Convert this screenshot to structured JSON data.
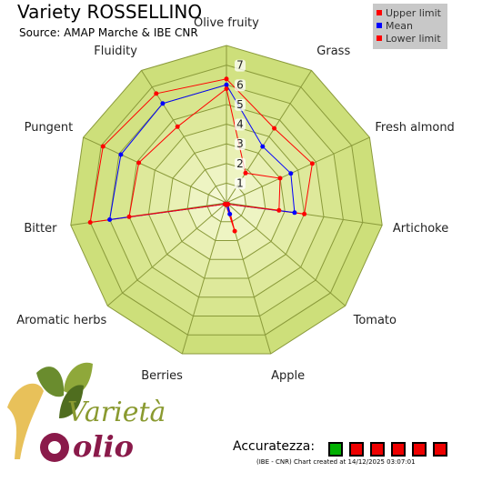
{
  "header": {
    "title": "Variety ROSSELLINO",
    "subtitle": "Source: AMAP Marche & IBE CNR"
  },
  "legend": {
    "items": [
      {
        "label": "Upper limit",
        "color": "#ff0000"
      },
      {
        "label": "Mean",
        "color": "#0000ff"
      },
      {
        "label": "Lower limit",
        "color": "#ff0000"
      }
    ]
  },
  "chart_data": {
    "type": "radar",
    "axes": [
      "Olive fruity",
      "Grass",
      "Fresh almond",
      "Artichoke",
      "Tomato",
      "Apple",
      "Berries",
      "Aromatic herbs",
      "Bitter",
      "Pungent",
      "Fluidity"
    ],
    "rlim": [
      0,
      8
    ],
    "ticks": [
      1,
      2,
      3,
      4,
      5,
      6,
      7
    ],
    "series": [
      {
        "name": "Upper limit",
        "color": "#ff0000",
        "values": [
          6.3,
          4.5,
          4.8,
          4.0,
          0.1,
          1.5,
          0.1,
          0.1,
          7.0,
          6.9,
          6.6
        ]
      },
      {
        "name": "Mean",
        "color": "#0000ff",
        "values": [
          6.0,
          3.4,
          3.6,
          3.5,
          0.1,
          0.6,
          0.1,
          0.1,
          6.0,
          5.9,
          6.0
        ]
      },
      {
        "name": "Lower limit",
        "color": "#ff0000",
        "values": [
          5.8,
          1.8,
          3.0,
          2.7,
          0.1,
          0.1,
          0.1,
          0.1,
          5.0,
          4.9,
          4.6
        ]
      }
    ],
    "grid": true
  },
  "accuracy": {
    "label": "Accuratezza:",
    "boxes": [
      "#00b000",
      "#ee0000",
      "#ee0000",
      "#ee0000",
      "#ee0000",
      "#ee0000"
    ]
  },
  "credit": "(IBE - CNR) Chart created at 14/12/2025 03:07:01",
  "watermark": {
    "logo_text_1": "Varietà",
    "logo_text_2": "olio"
  }
}
